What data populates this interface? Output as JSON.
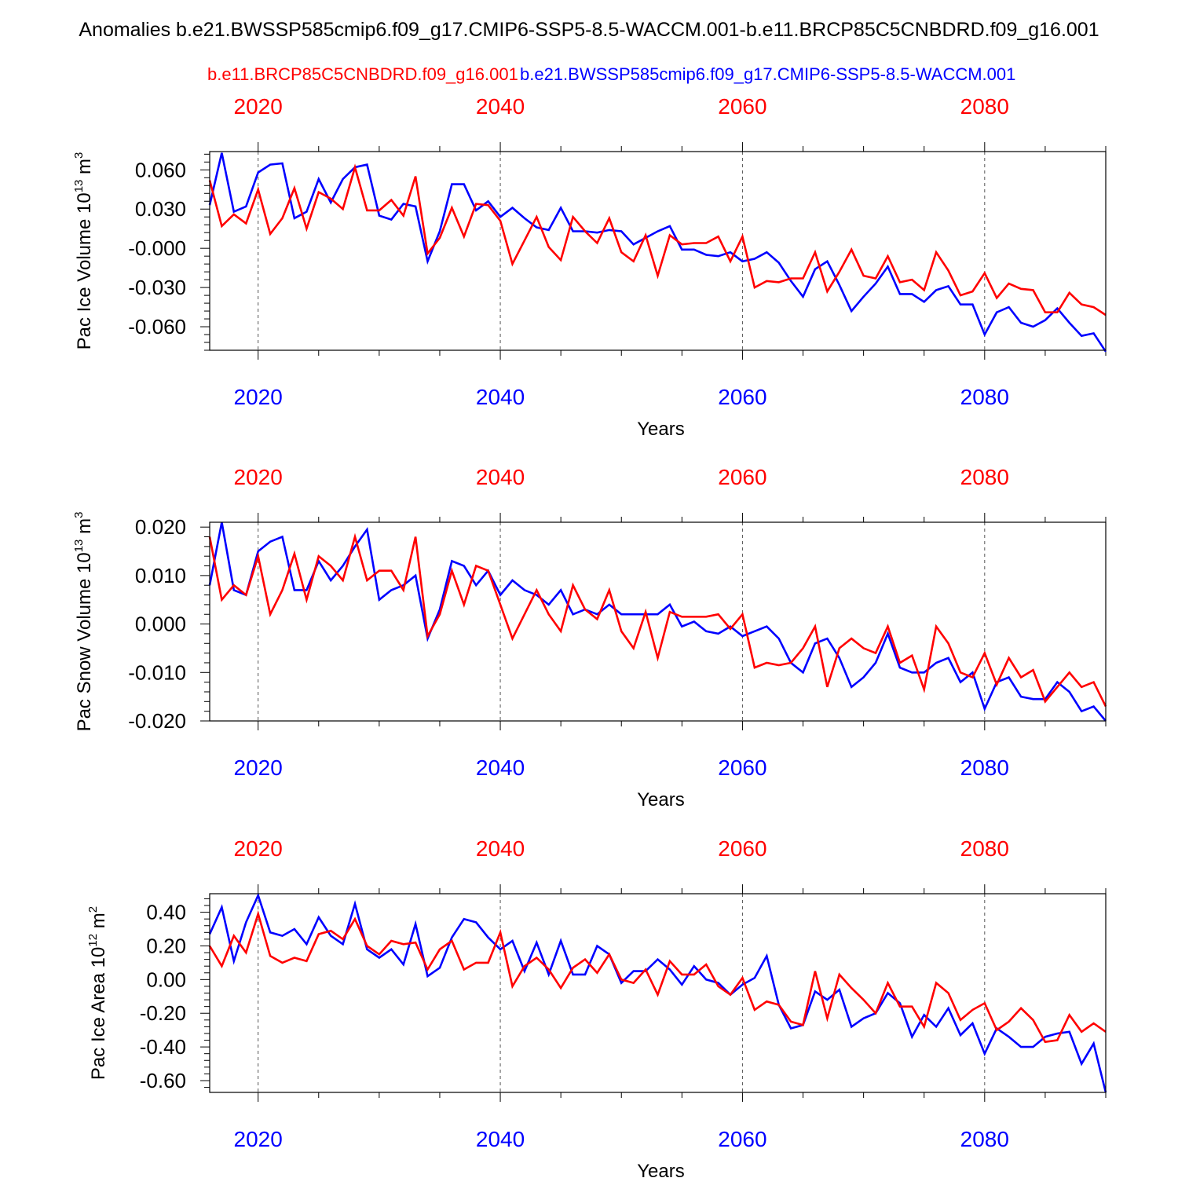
{
  "title": "Anomalies b.e21.BWSSP585cmip6.f09_g17.CMIP6-SSP5-8.5-WACCM.001-b.e11.BRCP85C5CNBDRD.f09_g16.001",
  "legend": {
    "red_label": "b.e11.BRCP85C5CNBDRD.f09_g16.001",
    "blue_label": "b.e21.BWSSP585cmip6.f09_g17.CMIP6-SSP5-8.5-WACCM.001"
  },
  "colors": {
    "red": "#ff0000",
    "blue": "#0000ff",
    "axis": "#000000",
    "grid": "#555555"
  },
  "chart_data": [
    {
      "type": "line",
      "ylabel": "Pac Ice Volume 10",
      "ylabel_exp": "13",
      "ylabel_unit": "m",
      "ylabel_unit_exp": "3",
      "xlabel": "Years",
      "xlim": [
        2016,
        2090
      ],
      "ylim": [
        -0.078,
        0.074
      ],
      "xticks": [
        2020,
        2040,
        2060,
        2080
      ],
      "xtick_labels": [
        "2020",
        "2040",
        "2060",
        "2080"
      ],
      "yticks": [
        0.06,
        0.03,
        0.0,
        -0.03,
        -0.06
      ],
      "ytick_labels": [
        "0.060",
        "0.030",
        "-0.000",
        "-0.030",
        "-0.060"
      ],
      "grid": "dashed vertical at major x ticks",
      "x": [
        2016,
        2017,
        2018,
        2019,
        2020,
        2021,
        2022,
        2023,
        2024,
        2025,
        2026,
        2027,
        2028,
        2029,
        2030,
        2031,
        2032,
        2033,
        2034,
        2035,
        2036,
        2037,
        2038,
        2039,
        2040,
        2041,
        2042,
        2043,
        2044,
        2045,
        2046,
        2047,
        2048,
        2049,
        2050,
        2051,
        2052,
        2053,
        2054,
        2055,
        2056,
        2057,
        2058,
        2059,
        2060,
        2061,
        2062,
        2063,
        2064,
        2065,
        2066,
        2067,
        2068,
        2069,
        2070,
        2071,
        2072,
        2073,
        2074,
        2075,
        2076,
        2077,
        2078,
        2079,
        2080,
        2081,
        2082,
        2083,
        2084,
        2085,
        2086,
        2087,
        2088,
        2089,
        2090
      ],
      "series": [
        {
          "name": "b.e21.BWSSP585cmip6.f09_g17.CMIP6-SSP5-8.5-WACCM.001",
          "color": "blue",
          "values": [
            0.033,
            0.073,
            0.028,
            0.032,
            0.058,
            0.064,
            0.065,
            0.023,
            0.028,
            0.053,
            0.035,
            0.053,
            0.062,
            0.064,
            0.025,
            0.022,
            0.034,
            0.032,
            -0.01,
            0.013,
            0.049,
            0.049,
            0.029,
            0.036,
            0.024,
            0.031,
            0.023,
            0.016,
            0.014,
            0.031,
            0.013,
            0.013,
            0.012,
            0.014,
            0.013,
            0.003,
            0.008,
            0.013,
            0.017,
            -0.001,
            -0.001,
            -0.005,
            -0.006,
            -0.003,
            -0.01,
            -0.008,
            -0.003,
            -0.011,
            -0.025,
            -0.037,
            -0.016,
            -0.01,
            -0.028,
            -0.048,
            -0.037,
            -0.027,
            -0.014,
            -0.035,
            -0.035,
            -0.041,
            -0.032,
            -0.029,
            -0.043,
            -0.043,
            -0.066,
            -0.049,
            -0.045,
            -0.057,
            -0.06,
            -0.055,
            -0.046,
            -0.057,
            -0.067,
            -0.065,
            -0.079
          ]
        },
        {
          "name": "b.e11.BRCP85C5CNBDRD.f09_g16.001",
          "color": "red",
          "values": [
            0.052,
            0.017,
            0.026,
            0.019,
            0.045,
            0.011,
            0.023,
            0.046,
            0.015,
            0.043,
            0.038,
            0.03,
            0.062,
            0.029,
            0.029,
            0.037,
            0.025,
            0.055,
            -0.004,
            0.008,
            0.031,
            0.009,
            0.034,
            0.033,
            0.021,
            -0.012,
            0.006,
            0.024,
            0.001,
            -0.009,
            0.024,
            0.013,
            0.004,
            0.023,
            -0.003,
            -0.01,
            0.01,
            -0.021,
            0.01,
            0.003,
            0.004,
            0.004,
            0.009,
            -0.01,
            0.009,
            -0.03,
            -0.025,
            -0.026,
            -0.023,
            -0.023,
            -0.003,
            -0.033,
            -0.018,
            -0.001,
            -0.021,
            -0.023,
            -0.006,
            -0.026,
            -0.024,
            -0.032,
            -0.003,
            -0.017,
            -0.036,
            -0.033,
            -0.019,
            -0.038,
            -0.027,
            -0.031,
            -0.032,
            -0.049,
            -0.049,
            -0.034,
            -0.043,
            -0.045,
            -0.051
          ]
        }
      ]
    },
    {
      "type": "line",
      "ylabel": "Pac Snow Volume 10",
      "ylabel_exp": "13",
      "ylabel_unit": "m",
      "ylabel_unit_exp": "3",
      "xlabel": "Years",
      "xlim": [
        2016,
        2090
      ],
      "ylim": [
        -0.02,
        0.021
      ],
      "xticks": [
        2020,
        2040,
        2060,
        2080
      ],
      "xtick_labels": [
        "2020",
        "2040",
        "2060",
        "2080"
      ],
      "yticks": [
        0.02,
        0.01,
        0.0,
        -0.01,
        -0.02
      ],
      "ytick_labels": [
        "0.020",
        "0.010",
        "0.000",
        "-0.010",
        "-0.020"
      ],
      "grid": "dashed vertical at major x ticks",
      "x": [
        2016,
        2017,
        2018,
        2019,
        2020,
        2021,
        2022,
        2023,
        2024,
        2025,
        2026,
        2027,
        2028,
        2029,
        2030,
        2031,
        2032,
        2033,
        2034,
        2035,
        2036,
        2037,
        2038,
        2039,
        2040,
        2041,
        2042,
        2043,
        2044,
        2045,
        2046,
        2047,
        2048,
        2049,
        2050,
        2051,
        2052,
        2053,
        2054,
        2055,
        2056,
        2057,
        2058,
        2059,
        2060,
        2061,
        2062,
        2063,
        2064,
        2065,
        2066,
        2067,
        2068,
        2069,
        2070,
        2071,
        2072,
        2073,
        2074,
        2075,
        2076,
        2077,
        2078,
        2079,
        2080,
        2081,
        2082,
        2083,
        2084,
        2085,
        2086,
        2087,
        2088,
        2089,
        2090
      ],
      "series": [
        {
          "name": "b.e21.BWSSP585cmip6.f09_g17.CMIP6-SSP5-8.5-WACCM.001",
          "color": "blue",
          "values": [
            0.008,
            0.021,
            0.007,
            0.006,
            0.015,
            0.017,
            0.018,
            0.007,
            0.007,
            0.013,
            0.009,
            0.012,
            0.016,
            0.0195,
            0.005,
            0.007,
            0.008,
            0.01,
            -0.003,
            0.003,
            0.013,
            0.012,
            0.008,
            0.011,
            0.006,
            0.009,
            0.007,
            0.006,
            0.004,
            0.007,
            0.002,
            0.003,
            0.002,
            0.004,
            0.002,
            0.002,
            0.002,
            0.002,
            0.004,
            -0.0005,
            0.0005,
            -0.0015,
            -0.002,
            -0.0005,
            -0.0025,
            -0.0015,
            -0.0005,
            -0.003,
            -0.008,
            -0.01,
            -0.004,
            -0.003,
            -0.007,
            -0.013,
            -0.011,
            -0.008,
            -0.002,
            -0.009,
            -0.01,
            -0.01,
            -0.008,
            -0.007,
            -0.012,
            -0.01,
            -0.0175,
            -0.012,
            -0.011,
            -0.015,
            -0.0155,
            -0.0155,
            -0.012,
            -0.014,
            -0.018,
            -0.017,
            -0.02
          ]
        },
        {
          "name": "b.e11.BRCP85C5CNBDRD.f09_g16.001",
          "color": "red",
          "values": [
            0.018,
            0.005,
            0.008,
            0.006,
            0.014,
            0.002,
            0.007,
            0.0145,
            0.005,
            0.014,
            0.012,
            0.009,
            0.018,
            0.009,
            0.011,
            0.011,
            0.007,
            0.018,
            -0.0025,
            0.002,
            0.011,
            0.004,
            0.012,
            0.011,
            0.004,
            -0.003,
            0.002,
            0.007,
            0.002,
            -0.0015,
            0.008,
            0.003,
            0.001,
            0.007,
            -0.0015,
            -0.005,
            0.0025,
            -0.007,
            0.0025,
            0.0015,
            0.0015,
            0.0015,
            0.002,
            -0.001,
            0.002,
            -0.009,
            -0.008,
            -0.0085,
            -0.008,
            -0.005,
            -0.0005,
            -0.013,
            -0.005,
            -0.003,
            -0.005,
            -0.006,
            -0.0005,
            -0.008,
            -0.0065,
            -0.0135,
            -0.0005,
            -0.004,
            -0.01,
            -0.011,
            -0.006,
            -0.0125,
            -0.007,
            -0.011,
            -0.0095,
            -0.016,
            -0.013,
            -0.01,
            -0.013,
            -0.012,
            -0.017
          ]
        }
      ]
    },
    {
      "type": "line",
      "ylabel": "Pac Ice Area 10",
      "ylabel_exp": "12",
      "ylabel_unit": "m",
      "ylabel_unit_exp": "2",
      "xlabel": "Years",
      "xlim": [
        2016,
        2090
      ],
      "ylim": [
        -0.67,
        0.51
      ],
      "xticks": [
        2020,
        2040,
        2060,
        2080
      ],
      "xtick_labels": [
        "2020",
        "2040",
        "2060",
        "2080"
      ],
      "yticks": [
        0.4,
        0.2,
        0.0,
        -0.2,
        -0.4,
        -0.6
      ],
      "ytick_labels": [
        "0.40",
        "0.20",
        "0.00",
        "-0.20",
        "-0.40",
        "-0.60"
      ],
      "grid": "dashed vertical at major x ticks",
      "x": [
        2016,
        2017,
        2018,
        2019,
        2020,
        2021,
        2022,
        2023,
        2024,
        2025,
        2026,
        2027,
        2028,
        2029,
        2030,
        2031,
        2032,
        2033,
        2034,
        2035,
        2036,
        2037,
        2038,
        2039,
        2040,
        2041,
        2042,
        2043,
        2044,
        2045,
        2046,
        2047,
        2048,
        2049,
        2050,
        2051,
        2052,
        2053,
        2054,
        2055,
        2056,
        2057,
        2058,
        2059,
        2060,
        2061,
        2062,
        2063,
        2064,
        2065,
        2066,
        2067,
        2068,
        2069,
        2070,
        2071,
        2072,
        2073,
        2074,
        2075,
        2076,
        2077,
        2078,
        2079,
        2080,
        2081,
        2082,
        2083,
        2084,
        2085,
        2086,
        2087,
        2088,
        2089,
        2090
      ],
      "series": [
        {
          "name": "b.e21.BWSSP585cmip6.f09_g17.CMIP6-SSP5-8.5-WACCM.001",
          "color": "blue",
          "values": [
            0.27,
            0.43,
            0.11,
            0.34,
            0.5,
            0.28,
            0.26,
            0.3,
            0.21,
            0.37,
            0.26,
            0.21,
            0.45,
            0.18,
            0.13,
            0.18,
            0.09,
            0.33,
            0.02,
            0.07,
            0.25,
            0.36,
            0.34,
            0.25,
            0.18,
            0.23,
            0.05,
            0.22,
            0.03,
            0.23,
            0.03,
            0.03,
            0.2,
            0.15,
            -0.02,
            0.05,
            0.05,
            0.12,
            0.06,
            -0.03,
            0.08,
            0.0,
            -0.02,
            -0.09,
            -0.03,
            0.01,
            0.14,
            -0.15,
            -0.29,
            -0.27,
            -0.07,
            -0.12,
            -0.06,
            -0.28,
            -0.23,
            -0.2,
            -0.08,
            -0.14,
            -0.34,
            -0.21,
            -0.28,
            -0.17,
            -0.33,
            -0.26,
            -0.44,
            -0.29,
            -0.34,
            -0.4,
            -0.4,
            -0.34,
            -0.32,
            -0.31,
            -0.5,
            -0.38,
            -0.67
          ]
        },
        {
          "name": "b.e11.BRCP85C5CNBDRD.f09_g16.001",
          "color": "red",
          "values": [
            0.2,
            0.08,
            0.26,
            0.16,
            0.39,
            0.14,
            0.1,
            0.13,
            0.11,
            0.27,
            0.29,
            0.24,
            0.36,
            0.2,
            0.15,
            0.23,
            0.21,
            0.22,
            0.06,
            0.18,
            0.23,
            0.06,
            0.1,
            0.1,
            0.28,
            -0.04,
            0.08,
            0.13,
            0.06,
            -0.05,
            0.07,
            0.12,
            0.04,
            0.15,
            0.0,
            -0.02,
            0.06,
            -0.09,
            0.11,
            0.03,
            0.03,
            0.09,
            -0.04,
            -0.09,
            0.01,
            -0.18,
            -0.13,
            -0.15,
            -0.25,
            -0.27,
            0.05,
            -0.23,
            0.03,
            -0.05,
            -0.12,
            -0.2,
            -0.02,
            -0.16,
            -0.16,
            -0.28,
            -0.02,
            -0.08,
            -0.24,
            -0.18,
            -0.14,
            -0.3,
            -0.25,
            -0.17,
            -0.24,
            -0.37,
            -0.36,
            -0.21,
            -0.31,
            -0.26,
            -0.31
          ]
        }
      ]
    }
  ]
}
